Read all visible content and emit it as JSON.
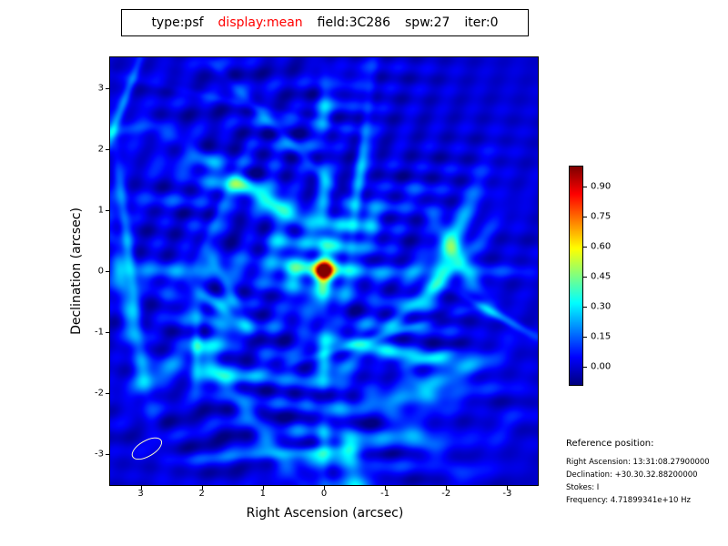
{
  "title_box": {
    "parts": [
      {
        "text": "type:psf",
        "color": "#000000"
      },
      {
        "text": "display:mean",
        "color": "#ff0000"
      },
      {
        "text": "field:3C286",
        "color": "#000000"
      },
      {
        "text": "spw:27",
        "color": "#000000"
      },
      {
        "text": "iter:0",
        "color": "#000000"
      }
    ]
  },
  "plot": {
    "xlabel": "Right Ascension (arcsec)",
    "ylabel": "Declination (arcsec)"
  },
  "reference": {
    "heading": "Reference position:",
    "lines": [
      "Right Ascension: 13:31:08.27900000",
      "Declination: +30.30.32.88200000",
      "Stokes: I",
      "Frequency: 4.71899341e+10 Hz"
    ]
  },
  "chart_data": {
    "type": "heatmap",
    "title": "type:psf display:mean field:3C286 spw:27 iter:0",
    "xlabel": "Right Ascension (arcsec)",
    "ylabel": "Declination (arcsec)",
    "x_ticks": [
      3,
      2,
      1,
      0,
      -1,
      -2,
      -3
    ],
    "y_ticks": [
      3,
      2,
      1,
      0,
      -1,
      -2,
      -3
    ],
    "xlim": [
      3.5,
      -3.5
    ],
    "ylim": [
      -3.5,
      3.5
    ],
    "colormap": "jet",
    "colorbar_tick_labels": [
      "0.90",
      "0.75",
      "0.60",
      "0.45",
      "0.30",
      "0.15",
      "0.00"
    ],
    "value_range": [
      -0.09,
      1.0
    ],
    "peak": {
      "x": 0,
      "y": 0,
      "value": 1.0
    },
    "description": "Point spread function image: bright compact peak at origin, cross-shaped sidelobe blobs along RA=0 and Dec=0 with ~1.4 arcsec spacing, faint cyan ripple/streak sidelobes over dark blue background",
    "sidelobe_blob_spacing_arcsec": 1.4,
    "beam_marker": {
      "x": 2.9,
      "y": -2.9,
      "major_arcsec": 0.26,
      "minor_arcsec": 0.13,
      "pa_deg": -30,
      "color": "#ffffcc"
    }
  }
}
